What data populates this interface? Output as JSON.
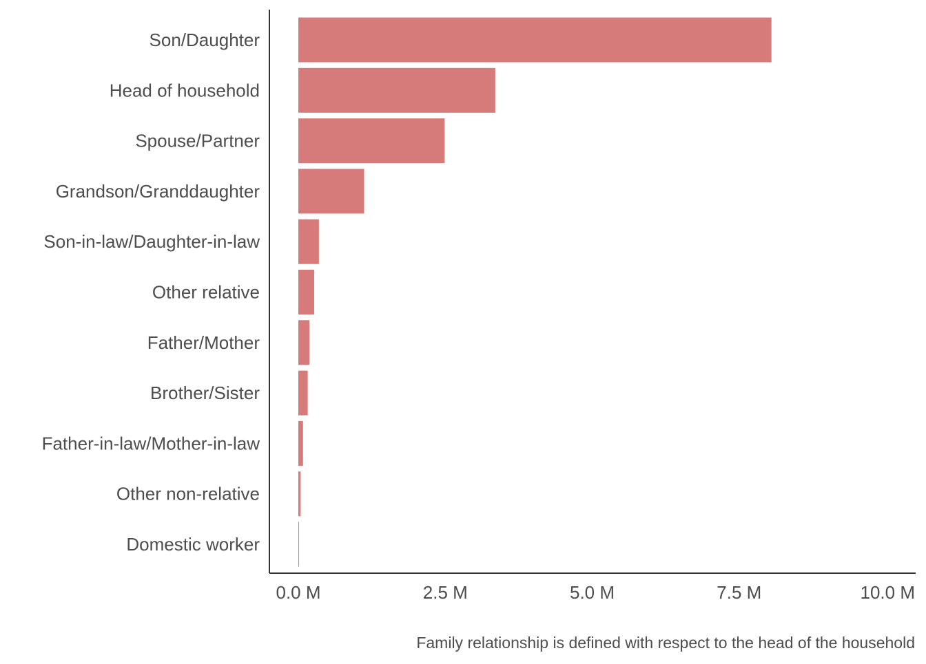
{
  "chart_data": {
    "type": "bar",
    "orientation": "horizontal",
    "categories": [
      "Son/Daughter",
      "Head of household",
      "Spouse/Partner",
      "Grandson/Granddaughter",
      "Son-in-law/Daughter-in-law",
      "Other relative",
      "Father/Mother",
      "Brother/Sister",
      "Father-in-law/Mother-in-law",
      "Other non-relative",
      "Domestic worker"
    ],
    "values": [
      8050000,
      3350000,
      2490000,
      1120000,
      350000,
      270000,
      190000,
      160000,
      80000,
      40000,
      8000
    ],
    "xlim": [
      0,
      10000000
    ],
    "x_ticks": [
      0,
      2500000,
      5000000,
      7500000,
      10000000
    ],
    "x_tick_labels": [
      "0.0 M",
      "2.5 M",
      "5.0 M",
      "7.5 M",
      "10.0 M"
    ],
    "caption": "Family relationship is defined with respect to the head of the household",
    "grid": false,
    "legend": "none"
  },
  "colors": {
    "bar": "#d67b7a",
    "text": "#4d4d4d",
    "axis": "#333333"
  }
}
